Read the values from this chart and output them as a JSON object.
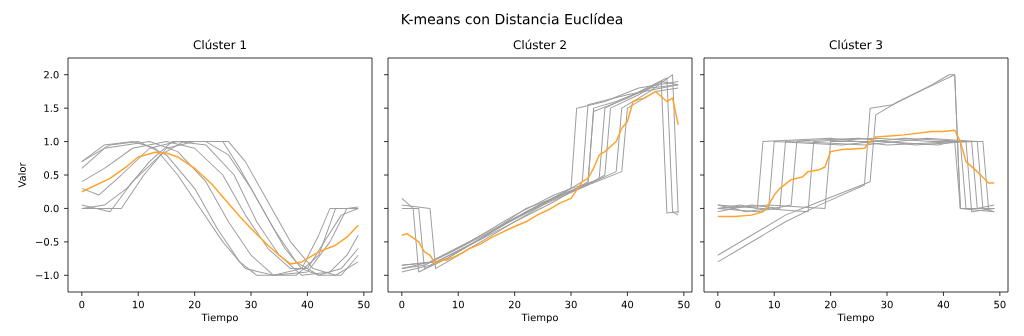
{
  "chart_data": [
    {
      "type": "line",
      "title": "Clúster 1",
      "xlabel": "Tiempo",
      "ylabel": "Valor",
      "annotations": [
        "K-means con Distancia Euclídea"
      ],
      "xlim": [
        -2.45,
        51.45
      ],
      "ylim": [
        -1.25,
        2.25
      ],
      "xticks": [
        0,
        10,
        20,
        30,
        40,
        50
      ],
      "yticks": [
        {
          "value": -1,
          "label": "−1.0"
        },
        {
          "value": -0.5,
          "label": "−0.5"
        },
        {
          "value": 0,
          "label": "0.0"
        },
        {
          "value": 0.5,
          "label": "0.5"
        },
        {
          "value": 1,
          "label": "1.0"
        },
        {
          "value": 1.5,
          "label": "1.5"
        },
        {
          "value": 2,
          "label": "2.0"
        }
      ],
      "series": [
        {
          "color": "#9e9e9e",
          "x": [
            0,
            5,
            10,
            15,
            20,
            24,
            28,
            31,
            38,
            42,
            45,
            49
          ],
          "values": [
            0.7,
            0.95,
            1.0,
            0.8,
            0.3,
            -0.3,
            -0.8,
            -1.0,
            -1.0,
            -0.7,
            0.0,
            0.0
          ]
        },
        {
          "color": "#9e9e9e",
          "x": [
            0,
            4,
            12,
            17,
            22,
            26,
            30,
            34,
            40,
            44,
            47,
            49
          ],
          "values": [
            0.6,
            0.9,
            1.0,
            0.85,
            0.4,
            -0.2,
            -0.7,
            -1.0,
            -0.95,
            -0.5,
            0.0,
            0.02
          ]
        },
        {
          "color": "#9e9e9e",
          "x": [
            0,
            7,
            11,
            15,
            20,
            25,
            28,
            32,
            36,
            39,
            42,
            46,
            49
          ],
          "values": [
            0.0,
            0.0,
            0.5,
            0.9,
            1.0,
            1.0,
            0.6,
            0.0,
            -0.6,
            -0.9,
            -1.0,
            -0.9,
            -0.6
          ]
        },
        {
          "color": "#9e9e9e",
          "x": [
            0,
            5,
            9,
            14,
            18,
            26,
            29,
            33,
            37,
            41,
            45,
            49
          ],
          "values": [
            0.05,
            -0.05,
            0.4,
            0.8,
            1.0,
            1.0,
            0.7,
            0.1,
            -0.5,
            -0.9,
            -1.0,
            -0.8
          ]
        },
        {
          "color": "#9e9e9e",
          "x": [
            0,
            4,
            9,
            15,
            20,
            25,
            29,
            33,
            37,
            40,
            43,
            46,
            49
          ],
          "values": [
            0.4,
            0.6,
            0.9,
            1.0,
            0.9,
            0.5,
            -0.1,
            -0.6,
            -0.9,
            -0.9,
            -0.5,
            -0.1,
            0.0
          ]
        },
        {
          "color": "#9e9e9e",
          "x": [
            0,
            3,
            7,
            12,
            17,
            22,
            27,
            31,
            35,
            39,
            44,
            47,
            49
          ],
          "values": [
            0.3,
            0.2,
            0.5,
            0.9,
            1.0,
            0.95,
            0.5,
            -0.2,
            -0.7,
            -1.0,
            -0.95,
            -0.7,
            -0.4
          ]
        },
        {
          "color": "#9e9e9e",
          "x": [
            0,
            4,
            8,
            12,
            16,
            22,
            26,
            30,
            34,
            38,
            42,
            46,
            49
          ],
          "values": [
            0.0,
            0.05,
            0.3,
            0.7,
            1.0,
            1.0,
            0.8,
            0.3,
            -0.3,
            -0.8,
            -1.0,
            -1.0,
            -0.7
          ]
        },
        {
          "color": "#9e9e9e",
          "x": [
            0,
            4,
            9,
            13,
            17,
            21,
            25,
            29,
            34,
            39,
            42,
            44,
            49
          ],
          "values": [
            0.7,
            0.95,
            1.0,
            0.9,
            0.5,
            0.0,
            -0.5,
            -0.9,
            -1.0,
            -0.9,
            -0.4,
            0.0,
            0.0
          ]
        },
        {
          "color": "#ffa32b",
          "x": [
            0,
            5,
            8,
            10,
            13,
            15,
            17,
            20,
            23,
            25,
            28,
            30,
            33,
            35,
            37,
            39,
            42,
            45,
            47,
            49
          ],
          "values": [
            0.25,
            0.45,
            0.63,
            0.77,
            0.84,
            0.83,
            0.77,
            0.6,
            0.37,
            0.17,
            -0.12,
            -0.3,
            -0.55,
            -0.7,
            -0.83,
            -0.8,
            -0.65,
            -0.55,
            -0.43,
            -0.25
          ]
        }
      ]
    },
    {
      "type": "line",
      "title": "Clúster 2",
      "xlabel": "Tiempo",
      "tick_labels": "x",
      "xlim": [
        -2.45,
        51.45
      ],
      "ylim": [
        -1.25,
        2.25
      ],
      "xticks": [
        0,
        10,
        20,
        30,
        40,
        50
      ],
      "yticks": [
        {
          "value": -1,
          "label": null
        },
        {
          "value": -0.5,
          "label": null
        },
        {
          "value": 0,
          "label": null
        },
        {
          "value": 0.5,
          "label": null
        },
        {
          "value": 1,
          "label": null
        },
        {
          "value": 1.5,
          "label": null
        },
        {
          "value": 2,
          "label": null
        }
      ],
      "series": [
        {
          "color": "#9e9e9e",
          "x": [
            0,
            5,
            12,
            20,
            27,
            30,
            31,
            36,
            42,
            49
          ],
          "values": [
            -0.9,
            -0.8,
            -0.5,
            -0.1,
            0.2,
            0.3,
            1.5,
            1.6,
            1.8,
            1.9
          ]
        },
        {
          "color": "#9e9e9e",
          "x": [
            0,
            3,
            4,
            8,
            15,
            22,
            30,
            33,
            34,
            38,
            44,
            49
          ],
          "values": [
            0.0,
            0.0,
            -0.9,
            -0.75,
            -0.4,
            0.0,
            0.25,
            0.35,
            1.5,
            1.6,
            1.8,
            1.85
          ]
        },
        {
          "color": "#9e9e9e",
          "x": [
            0,
            6,
            13,
            20,
            28,
            34,
            36,
            37,
            42,
            46,
            49
          ],
          "values": [
            -0.85,
            -0.8,
            -0.5,
            -0.15,
            0.2,
            0.4,
            0.5,
            1.5,
            1.7,
            1.9,
            1.85
          ]
        },
        {
          "color": "#9e9e9e",
          "x": [
            0,
            5,
            6,
            10,
            17,
            25,
            33,
            39,
            40,
            45,
            49
          ],
          "values": [
            0.05,
            0.0,
            -0.9,
            -0.7,
            -0.35,
            0.05,
            0.35,
            0.55,
            1.5,
            1.75,
            1.8
          ]
        },
        {
          "color": "#9e9e9e",
          "x": [
            0,
            5,
            12,
            20,
            27,
            33,
            34,
            40,
            45,
            46,
            47,
            49
          ],
          "values": [
            -0.95,
            -0.85,
            -0.55,
            -0.2,
            0.1,
            0.4,
            1.45,
            1.65,
            1.85,
            1.9,
            -0.07,
            -0.05
          ]
        },
        {
          "color": "#9e9e9e",
          "x": [
            0,
            4,
            10,
            18,
            26,
            31,
            35,
            36,
            41,
            47,
            48,
            49
          ],
          "values": [
            -0.9,
            -0.85,
            -0.6,
            -0.25,
            0.1,
            0.3,
            0.45,
            1.5,
            1.7,
            1.95,
            -0.05,
            -0.1
          ]
        },
        {
          "color": "#9e9e9e",
          "x": [
            0,
            2,
            3,
            8,
            14,
            22,
            30,
            34,
            38,
            39,
            44,
            48,
            49
          ],
          "values": [
            0.15,
            0.0,
            -0.95,
            -0.75,
            -0.45,
            -0.05,
            0.3,
            0.4,
            0.55,
            1.5,
            1.75,
            2.0,
            -0.07
          ]
        },
        {
          "color": "#9e9e9e",
          "x": [
            0,
            5,
            13,
            21,
            29,
            32,
            33,
            40,
            49
          ],
          "values": [
            -0.85,
            -0.8,
            -0.45,
            -0.1,
            0.25,
            0.4,
            1.55,
            1.7,
            1.85
          ]
        },
        {
          "color": "#ffa32b",
          "x": [
            0,
            1,
            3,
            4,
            5,
            6,
            7,
            8,
            10,
            12,
            14,
            16,
            18,
            20,
            22,
            24,
            26,
            28,
            30,
            32,
            33,
            34,
            35,
            36,
            38,
            39,
            40,
            41,
            42,
            43,
            45,
            47,
            48,
            49
          ],
          "values": [
            -0.4,
            -0.38,
            -0.5,
            -0.65,
            -0.7,
            -0.83,
            -0.77,
            -0.77,
            -0.7,
            -0.6,
            -0.53,
            -0.43,
            -0.35,
            -0.27,
            -0.2,
            -0.1,
            -0.02,
            0.08,
            0.15,
            0.4,
            0.45,
            0.6,
            0.8,
            0.85,
            1.0,
            1.2,
            1.3,
            1.6,
            1.63,
            1.65,
            1.75,
            1.6,
            1.65,
            1.25
          ]
        }
      ]
    },
    {
      "type": "line",
      "title": "Clúster 3",
      "xlabel": "Tiempo",
      "tick_labels": "x",
      "xlim": [
        -2.45,
        51.45
      ],
      "ylim": [
        -1.25,
        2.25
      ],
      "xticks": [
        0,
        10,
        20,
        30,
        40,
        50
      ],
      "yticks": [
        {
          "value": -1,
          "label": null
        },
        {
          "value": -0.5,
          "label": null
        },
        {
          "value": 0,
          "label": null
        },
        {
          "value": 0.5,
          "label": null
        },
        {
          "value": 1,
          "label": null
        },
        {
          "value": 1.5,
          "label": null
        },
        {
          "value": 2,
          "label": null
        }
      ],
      "series": [
        {
          "color": "#9e9e9e",
          "x": [
            0,
            5,
            12,
            18,
            27,
            28,
            32,
            37,
            42,
            43,
            49
          ],
          "values": [
            -0.7,
            -0.45,
            -0.1,
            0.1,
            0.4,
            1.4,
            1.6,
            1.8,
            2.0,
            0.0,
            0.0
          ]
        },
        {
          "color": "#9e9e9e",
          "x": [
            0,
            5,
            12,
            18,
            26,
            27,
            31,
            38,
            41,
            42,
            43,
            49
          ],
          "values": [
            -0.8,
            -0.55,
            -0.2,
            0.05,
            0.35,
            1.5,
            1.55,
            1.85,
            2.0,
            2.0,
            0.0,
            0.0
          ]
        },
        {
          "color": "#9e9e9e",
          "x": [
            0,
            4,
            7,
            8,
            20,
            30,
            43,
            44,
            49
          ],
          "values": [
            0.0,
            0.05,
            0.0,
            1.0,
            1.05,
            0.95,
            1.0,
            0.0,
            0.0
          ]
        },
        {
          "color": "#9e9e9e",
          "x": [
            0,
            5,
            9,
            10,
            22,
            33,
            44,
            45,
            49
          ],
          "values": [
            0.05,
            -0.05,
            0.0,
            1.0,
            0.95,
            1.05,
            1.0,
            -0.05,
            0.0
          ]
        },
        {
          "color": "#9e9e9e",
          "x": [
            0,
            6,
            11,
            12,
            25,
            35,
            45,
            46,
            49
          ],
          "values": [
            -0.05,
            0.05,
            0.0,
            1.0,
            1.05,
            0.95,
            1.0,
            0.0,
            0.05
          ]
        },
        {
          "color": "#9e9e9e",
          "x": [
            0,
            7,
            13,
            14,
            26,
            37,
            46,
            47,
            49
          ],
          "values": [
            0.0,
            -0.05,
            0.05,
            1.0,
            0.95,
            1.05,
            1.0,
            0.0,
            -0.05
          ]
        },
        {
          "color": "#9e9e9e",
          "x": [
            0,
            8,
            16,
            17,
            28,
            38,
            47,
            48,
            49
          ],
          "values": [
            0.05,
            0.0,
            -0.05,
            1.0,
            1.05,
            1.0,
            1.0,
            0.0,
            0.0
          ]
        },
        {
          "color": "#9e9e9e",
          "x": [
            0,
            9,
            19,
            20,
            29,
            39,
            42,
            43,
            49
          ],
          "values": [
            0.0,
            0.05,
            0.0,
            1.0,
            1.0,
            0.95,
            1.0,
            0.0,
            -0.05
          ]
        },
        {
          "color": "#ffa32b",
          "x": [
            0,
            3,
            6,
            8,
            9,
            10,
            11,
            13,
            15,
            16,
            18,
            19,
            20,
            22,
            24,
            26,
            27,
            28,
            30,
            33,
            35,
            38,
            40,
            42,
            43,
            44,
            46,
            48,
            49
          ],
          "values": [
            -0.12,
            -0.12,
            -0.1,
            -0.05,
            0.05,
            0.2,
            0.3,
            0.43,
            0.47,
            0.55,
            0.58,
            0.62,
            0.85,
            0.88,
            0.89,
            0.9,
            1.0,
            1.07,
            1.08,
            1.1,
            1.12,
            1.15,
            1.15,
            1.17,
            1.0,
            0.7,
            0.55,
            0.38,
            0.38
          ]
        }
      ]
    }
  ]
}
